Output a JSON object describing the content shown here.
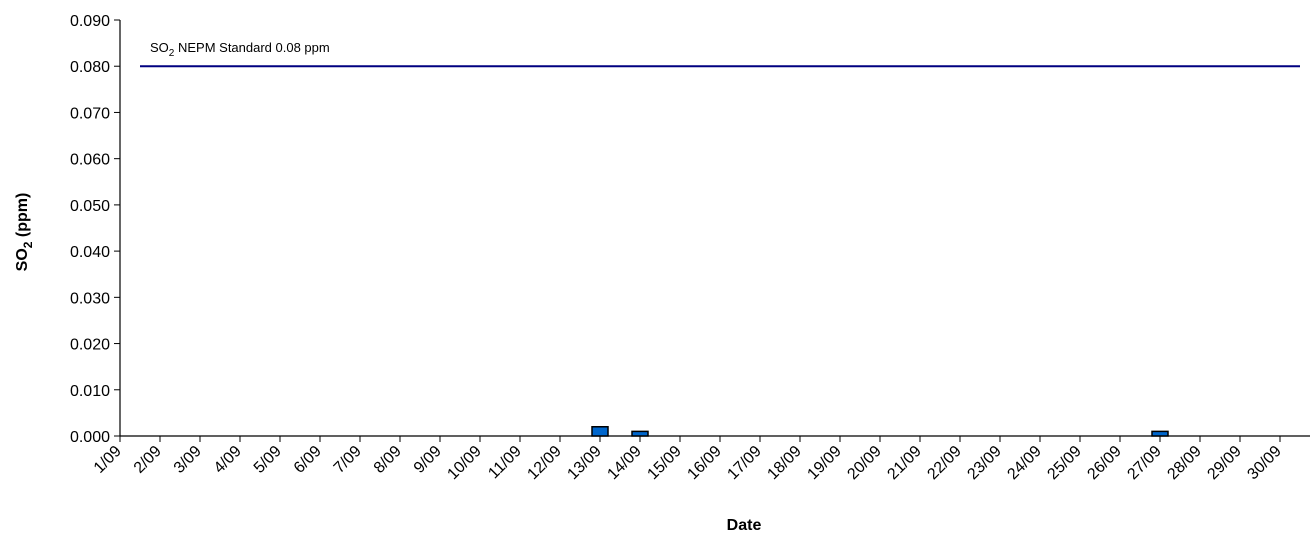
{
  "chart_data": {
    "type": "bar",
    "xlabel": "Date",
    "ylabel": {
      "main": "SO",
      "sub": "2",
      "tail": " (ppm)"
    },
    "ylim": [
      0,
      0.09
    ],
    "yticks": [
      "0.000",
      "0.010",
      "0.020",
      "0.030",
      "0.040",
      "0.050",
      "0.060",
      "0.070",
      "0.080",
      "0.090"
    ],
    "categories": [
      "1/09",
      "2/09",
      "3/09",
      "4/09",
      "5/09",
      "6/09",
      "7/09",
      "8/09",
      "9/09",
      "10/09",
      "11/09",
      "12/09",
      "13/09",
      "14/09",
      "15/09",
      "16/09",
      "17/09",
      "18/09",
      "19/09",
      "20/09",
      "21/09",
      "22/09",
      "23/09",
      "24/09",
      "25/09",
      "26/09",
      "27/09",
      "28/09",
      "29/09",
      "30/09"
    ],
    "values": [
      0,
      0,
      0,
      0,
      0,
      0,
      0,
      0,
      0,
      0,
      0,
      0,
      0.002,
      0.001,
      0,
      0,
      0,
      0,
      0,
      0,
      0,
      0,
      0,
      0,
      0,
      0,
      0.001,
      0,
      0,
      0
    ],
    "reference_line": {
      "value": 0.08,
      "label_main": "SO",
      "label_sub": "2",
      "label_tail": " NEPM Standard 0.08 ppm",
      "color": "#000080"
    },
    "bar_color": "#0066CC",
    "grid": false,
    "legend": "none"
  }
}
